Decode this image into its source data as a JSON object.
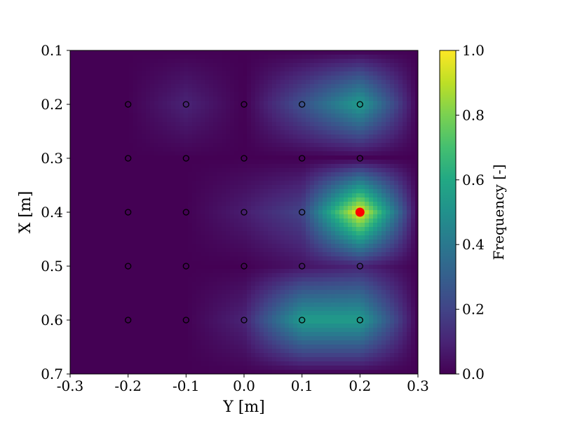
{
  "chart_data": {
    "type": "heatmap",
    "title": "",
    "xlabel": "Y [m]",
    "ylabel": "X [m]",
    "xlim": [
      -0.3,
      0.3
    ],
    "ylim": [
      0.1,
      0.7
    ],
    "y_axis_inverted": true,
    "x_ticks": [
      "-0.3",
      "-0.2",
      "-0.1",
      "0.0",
      "0.1",
      "0.2",
      "0.3"
    ],
    "y_ticks": [
      "0.1",
      "0.2",
      "0.3",
      "0.4",
      "0.5",
      "0.6",
      "0.7"
    ],
    "colorbar": {
      "label": "Frequency [-]",
      "range": [
        0.0,
        1.0
      ],
      "ticks": [
        "0.0",
        "0.2",
        "0.4",
        "0.6",
        "0.8",
        "1.0"
      ],
      "colormap": "viridis"
    },
    "grid": false,
    "sample_points": {
      "x_values": [
        -0.2,
        -0.1,
        0.0,
        0.1,
        0.2
      ],
      "y_values": [
        0.2,
        0.3,
        0.4,
        0.5,
        0.6
      ],
      "marker": "hollow-circle",
      "color": "#000000"
    },
    "field": {
      "x_values": [
        -0.3,
        -0.2,
        -0.1,
        0.0,
        0.1,
        0.2,
        0.3
      ],
      "y_values": [
        0.1,
        0.2,
        0.3,
        0.4,
        0.5,
        0.6,
        0.7
      ],
      "frequency": [
        [
          0.0,
          0.0,
          0.0,
          0.0,
          0.0,
          0.0,
          0.0
        ],
        [
          0.0,
          0.0,
          0.1,
          0.0,
          0.25,
          0.55,
          0.0
        ],
        [
          0.0,
          0.0,
          0.0,
          0.0,
          0.0,
          0.0,
          0.0
        ],
        [
          0.0,
          0.0,
          0.0,
          0.08,
          0.2,
          1.0,
          0.0
        ],
        [
          0.0,
          0.0,
          0.0,
          0.0,
          0.05,
          0.1,
          0.0
        ],
        [
          0.0,
          0.0,
          0.0,
          0.1,
          0.55,
          0.55,
          0.0
        ],
        [
          0.0,
          0.0,
          0.0,
          0.0,
          0.0,
          0.0,
          0.0
        ]
      ]
    },
    "highlight_point": {
      "x": 0.2,
      "y": 0.4,
      "color": "#ff0000"
    }
  }
}
